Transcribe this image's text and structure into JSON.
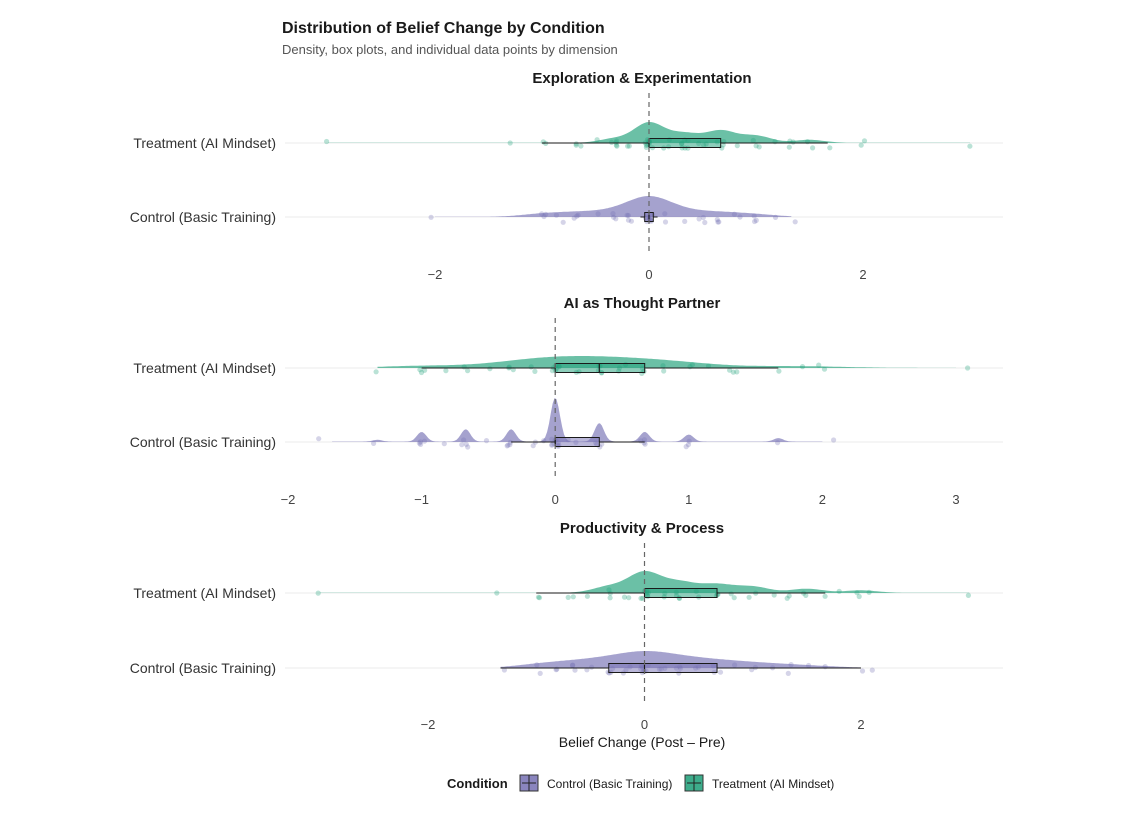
{
  "chart_data": {
    "type": "raincloud",
    "title": "Distribution of Belief Change by Condition",
    "subtitle": "Density, box plots, and individual data points by dimension",
    "xlabel": "Belief Change (Post – Pre)",
    "grid": "horizontal only",
    "reference_line_x": 0,
    "legend": {
      "title": "Condition",
      "position": "bottom",
      "items": [
        {
          "label": "Control (Basic Training)",
          "color": "#7570b3"
        },
        {
          "label": "Treatment (AI Mindset)",
          "color": "#1b9e77"
        }
      ]
    },
    "colors": {
      "control": "#7570b3",
      "treatment": "#1b9e77"
    },
    "panels": [
      {
        "title": "Exploration & Experimentation",
        "xlim": [
          -3.0,
          3.3
        ],
        "xticks": [
          -2,
          0,
          2
        ],
        "xtick_labels": [
          "−2",
          "0",
          "2"
        ],
        "groups": [
          {
            "label": "Treatment (AI Mindset)",
            "series": "treatment",
            "box": {
              "whisker_low": -1.0,
              "q1": 0.0,
              "median": 0.0,
              "q3": 0.67,
              "whisker_high": 1.67
            },
            "density_range": [
              -3.0,
              3.0
            ],
            "density_peaks": [
              [
                0.0,
                1.0
              ],
              [
                0.33,
                0.45
              ],
              [
                0.67,
                0.6
              ],
              [
                1.0,
                0.35
              ],
              [
                -0.33,
                0.2
              ],
              [
                1.5,
                0.15
              ]
            ],
            "density_bw": 0.14,
            "points": [
              -3.0,
              -1.33,
              -1.0,
              -1.0,
              -0.67,
              -0.67,
              -0.67,
              -0.5,
              -0.33,
              -0.33,
              -0.33,
              -0.33,
              -0.33,
              -0.17,
              -0.17,
              0,
              0,
              0,
              0,
              0,
              0,
              0,
              0,
              0,
              0,
              0.17,
              0.17,
              0.17,
              0.33,
              0.33,
              0.33,
              0.33,
              0.33,
              0.33,
              0.33,
              0.5,
              0.5,
              0.5,
              0.67,
              0.67,
              0.67,
              0.67,
              0.83,
              1.0,
              1.0,
              1.0,
              1.17,
              1.33,
              1.33,
              1.33,
              1.5,
              1.5,
              1.67,
              2.0,
              2.0,
              3.0
            ]
          },
          {
            "label": "Control (Basic Training)",
            "series": "control",
            "box": {
              "whisker_low": -0.08,
              "q1": -0.04,
              "median": 0.0,
              "q3": 0.04,
              "whisker_high": 0.08
            },
            "density_range": [
              -2.0,
              1.33
            ],
            "density_peaks": [
              [
                0.0,
                1.0
              ],
              [
                -0.67,
                0.2
              ],
              [
                0.67,
                0.2
              ],
              [
                -1.0,
                0.15
              ],
              [
                1.0,
                0.12
              ],
              [
                -0.33,
                0.25
              ],
              [
                0.33,
                0.25
              ]
            ],
            "density_bw": 0.2,
            "points": [
              -2.0,
              -1.0,
              -1.0,
              -1.0,
              -0.83,
              -0.83,
              -0.67,
              -0.67,
              -0.67,
              -0.5,
              -0.33,
              -0.33,
              -0.33,
              -0.17,
              -0.17,
              -0.17,
              -0.17,
              0,
              0,
              0,
              0,
              0,
              0,
              0,
              0,
              0,
              0,
              0.17,
              0.17,
              0.33,
              0.5,
              0.5,
              0.5,
              0.67,
              0.67,
              0.67,
              0.83,
              0.83,
              1.0,
              1.0,
              1.0,
              1.17,
              1.33
            ]
          }
        ]
      },
      {
        "title": "AI as Thought Partner",
        "xlim": [
          -2.0,
          3.33
        ],
        "xticks": [
          -2,
          -1,
          0,
          1,
          2,
          3
        ],
        "xtick_labels": [
          "−2",
          "−1",
          "0",
          "1",
          "2",
          "3"
        ],
        "groups": [
          {
            "label": "Treatment (AI Mindset)",
            "series": "treatment",
            "box": {
              "whisker_low": -1.0,
              "q1": 0.0,
              "median": 0.33,
              "q3": 0.67,
              "whisker_high": 1.67
            },
            "density_range": [
              -1.33,
              3.0
            ],
            "density_peaks": [
              [
                0.0,
                0.6
              ],
              [
                0.33,
                0.55
              ],
              [
                0.67,
                0.45
              ],
              [
                -0.33,
                0.35
              ],
              [
                1.0,
                0.3
              ],
              [
                -1.0,
                0.2
              ],
              [
                1.67,
                0.12
              ],
              [
                2.0,
                0.08
              ]
            ],
            "density_bw": 0.3,
            "points": [
              -1.33,
              -1.0,
              -1.0,
              -1.0,
              -0.83,
              -0.67,
              -0.67,
              -0.5,
              -0.33,
              -0.33,
              -0.33,
              -0.17,
              -0.17,
              0,
              0,
              0,
              0,
              0,
              0,
              0,
              0.17,
              0.17,
              0.33,
              0.33,
              0.33,
              0.33,
              0.33,
              0.5,
              0.5,
              0.5,
              0.67,
              0.67,
              0.67,
              0.83,
              0.83,
              1.0,
              1.0,
              1.17,
              1.33,
              1.33,
              1.33,
              1.67,
              1.83,
              2.0,
              2.0,
              3.1
            ]
          },
          {
            "label": "Control (Basic Training)",
            "series": "control",
            "box": {
              "whisker_low": -0.33,
              "q1": 0.0,
              "median": 0.0,
              "q3": 0.33,
              "whisker_high": 0.67
            },
            "density_range": [
              -1.67,
              2.0
            ],
            "density_peaks": [
              [
                0.0,
                1.0
              ],
              [
                0.33,
                0.42
              ],
              [
                -0.33,
                0.28
              ],
              [
                -0.67,
                0.28
              ],
              [
                -1.0,
                0.22
              ],
              [
                0.67,
                0.22
              ],
              [
                1.0,
                0.16
              ],
              [
                1.67,
                0.08
              ],
              [
                -1.33,
                0.04
              ]
            ],
            "density_bw": 0.035,
            "points": [
              -1.8,
              -1.33,
              -1.0,
              -1.0,
              -1.0,
              -1.0,
              -0.83,
              -0.67,
              -0.67,
              -0.67,
              -0.67,
              -0.5,
              -0.33,
              -0.33,
              -0.33,
              -0.33,
              -0.17,
              -0.17,
              -0.08,
              0,
              0,
              0,
              0,
              0,
              0,
              0,
              0,
              0,
              0,
              0.08,
              0.17,
              0.33,
              0.33,
              0.33,
              0.33,
              0.67,
              0.67,
              0.67,
              0.67,
              1.0,
              1.0,
              1.0,
              1.67,
              2.1
            ]
          }
        ]
      },
      {
        "title": "Productivity & Process",
        "xlim": [
          -3.0,
          3.3
        ],
        "xticks": [
          -2,
          0,
          2
        ],
        "xtick_labels": [
          "−2",
          "0",
          "2"
        ],
        "groups": [
          {
            "label": "Treatment (AI Mindset)",
            "series": "treatment",
            "box": {
              "whisker_low": -1.0,
              "q1": 0.0,
              "median": 0.0,
              "q3": 0.67,
              "whisker_high": 1.67
            },
            "density_range": [
              -3.0,
              3.0
            ],
            "density_peaks": [
              [
                0.0,
                1.0
              ],
              [
                0.33,
                0.5
              ],
              [
                0.67,
                0.4
              ],
              [
                1.0,
                0.3
              ],
              [
                -0.33,
                0.3
              ],
              [
                1.5,
                0.2
              ],
              [
                2.0,
                0.12
              ]
            ],
            "density_bw": 0.15,
            "points": [
              -3.0,
              -1.33,
              -1.0,
              -1.0,
              -0.67,
              -0.67,
              -0.5,
              -0.33,
              -0.33,
              -0.33,
              -0.17,
              -0.17,
              0,
              0,
              0,
              0,
              0,
              0,
              0,
              0,
              0.17,
              0.17,
              0.33,
              0.33,
              0.33,
              0.33,
              0.5,
              0.5,
              0.67,
              0.67,
              0.67,
              0.83,
              0.83,
              1.0,
              1.0,
              1.17,
              1.33,
              1.33,
              1.5,
              1.5,
              1.67,
              1.83,
              2.0,
              2.0,
              2.1,
              3.0
            ]
          },
          {
            "label": "Control (Basic Training)",
            "series": "control",
            "box": {
              "whisker_low": -1.33,
              "q1": -0.33,
              "median": 0.0,
              "q3": 0.67,
              "whisker_high": 2.0
            },
            "density_range": [
              -1.33,
              2.0
            ],
            "density_peaks": [
              [
                0.0,
                1.0
              ],
              [
                0.33,
                0.65
              ],
              [
                -0.33,
                0.6
              ],
              [
                0.67,
                0.45
              ],
              [
                -0.67,
                0.4
              ],
              [
                1.0,
                0.3
              ],
              [
                -1.0,
                0.25
              ],
              [
                1.33,
                0.2
              ],
              [
                1.67,
                0.1
              ]
            ],
            "density_bw": 0.22,
            "points": [
              -1.33,
              -1.0,
              -1.0,
              -0.83,
              -0.83,
              -0.67,
              -0.67,
              -0.67,
              -0.5,
              -0.5,
              -0.33,
              -0.33,
              -0.33,
              -0.33,
              -0.17,
              -0.17,
              -0.17,
              0,
              0,
              0,
              0,
              0,
              0,
              0,
              0,
              0,
              0.17,
              0.17,
              0.17,
              0.33,
              0.33,
              0.33,
              0.33,
              0.5,
              0.5,
              0.67,
              0.67,
              0.67,
              0.83,
              1.0,
              1.0,
              1.17,
              1.33,
              1.33,
              1.5,
              1.67,
              2.0,
              2.07
            ]
          }
        ]
      }
    ]
  }
}
